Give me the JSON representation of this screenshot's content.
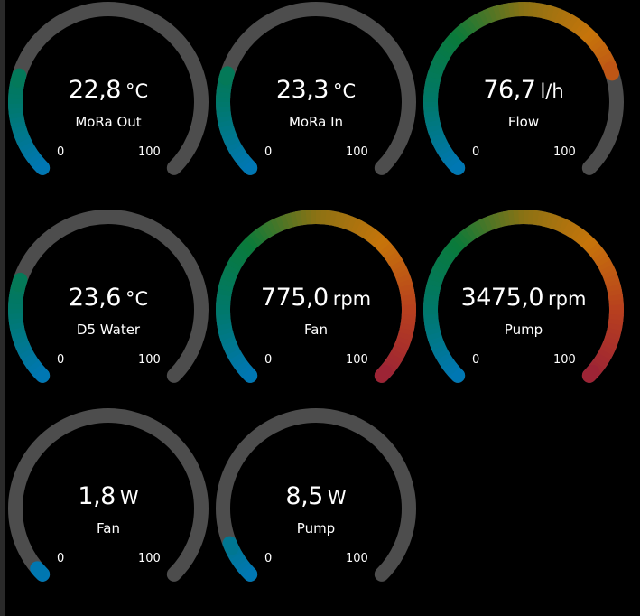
{
  "colors": {
    "background": "#000000",
    "track": "#4d4d4d",
    "gradient": [
      "#0077b6",
      "#00786a",
      "#0a7a3a",
      "#8a7214",
      "#c7740a",
      "#b8401e",
      "#9c2336"
    ]
  },
  "gauges": [
    {
      "value": "22,8",
      "unit": "°C",
      "label": "MoRa Out",
      "min": "0",
      "max": "100",
      "fill": 0.228
    },
    {
      "value": "23,3",
      "unit": "°C",
      "label": "MoRa In",
      "min": "0",
      "max": "100",
      "fill": 0.233
    },
    {
      "value": "76,7",
      "unit": "l/h",
      "label": "Flow",
      "min": "0",
      "max": "100",
      "fill": 0.767
    },
    {
      "value": "23,6",
      "unit": "°C",
      "label": "D5 Water",
      "min": "0",
      "max": "100",
      "fill": 0.236
    },
    {
      "value": "775,0",
      "unit": "rpm",
      "label": "Fan",
      "min": "0",
      "max": "100",
      "fill": 1.0
    },
    {
      "value": "3475,0",
      "unit": "rpm",
      "label": "Pump",
      "min": "0",
      "max": "100",
      "fill": 1.0
    },
    {
      "value": "1,8",
      "unit": "W",
      "label": "Fan",
      "min": "0",
      "max": "100",
      "fill": 0.018
    },
    {
      "value": "8,5",
      "unit": "W",
      "label": "Pump",
      "min": "0",
      "max": "100",
      "fill": 0.085
    }
  ]
}
